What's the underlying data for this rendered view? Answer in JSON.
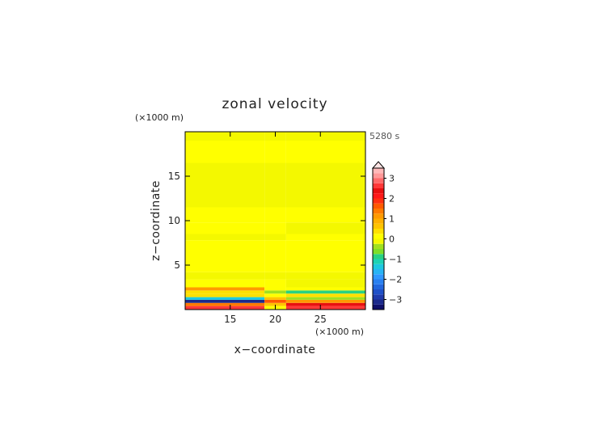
{
  "chart_data": {
    "type": "heatmap",
    "title": "zonal velocity",
    "xlabel": "x−coordinate",
    "ylabel": "z−coordinate",
    "x_unit": "(×1000 m)",
    "y_unit": "(×1000 m)",
    "time_label": "5280 s",
    "xlim": [
      10,
      30
    ],
    "ylim": [
      0,
      20
    ],
    "x_ticks": [
      15,
      20,
      25
    ],
    "y_ticks": [
      5,
      10,
      15
    ],
    "x_tick_labels": [
      "15",
      "20",
      "25"
    ],
    "y_tick_labels": [
      "5",
      "10",
      "15"
    ],
    "colorbar": {
      "levels": [
        -3.5,
        -3.25,
        -3,
        -2.75,
        -2.5,
        -2.25,
        -2,
        -1.75,
        -1.5,
        -1.25,
        -1,
        -0.75,
        -0.5,
        -0.25,
        0,
        0.25,
        0.5,
        0.75,
        1,
        1.25,
        1.5,
        1.75,
        2,
        2.25,
        2.5,
        2.75,
        3,
        3.25,
        3.5
      ],
      "colors": [
        "#10106a",
        "#1c2a8c",
        "#1f3aac",
        "#2050c8",
        "#2266dd",
        "#2a80f0",
        "#3098ff",
        "#28b4f4",
        "#1ec8e0",
        "#1ed2b4",
        "#28d282",
        "#7ede28",
        "#a0e020",
        "#f4f800",
        "#ffff00",
        "#ffe000",
        "#ffc400",
        "#ffb000",
        "#ff9a00",
        "#ff7a00",
        "#ff5a00",
        "#ff3010",
        "#ff1818",
        "#e81010",
        "#ff3838",
        "#ff6a6a",
        "#ff9898",
        "#ffb8b8"
      ],
      "tick_values": [
        -3,
        -2,
        -1,
        0,
        1,
        2,
        3
      ],
      "tick_labels": [
        "−3",
        "−2",
        "−1",
        "0",
        "1",
        "2",
        "3"
      ],
      "extend": "max"
    },
    "bands": [
      {
        "z": [
          0.0,
          0.4
        ],
        "left": 2.6,
        "mid": 0.2,
        "right": 2.6
      },
      {
        "z": [
          0.4,
          0.75
        ],
        "left": 1.4,
        "mid": 0.5,
        "right": 2.3
      },
      {
        "z": [
          0.75,
          1.1
        ],
        "left": -3.2,
        "mid": 1.5,
        "right": 1.0
      },
      {
        "z": [
          1.1,
          1.4
        ],
        "left": -1.3,
        "mid": 0.6,
        "right": -0.4
      },
      {
        "z": [
          1.4,
          1.8
        ],
        "left": 0.3,
        "mid": 0.2,
        "right": 0.3
      },
      {
        "z": [
          1.8,
          2.15
        ],
        "left": 0.3,
        "mid": -0.3,
        "right": -0.9
      },
      {
        "z": [
          2.15,
          2.5
        ],
        "left": 1.0,
        "mid": 0.1,
        "right": 0.1
      },
      {
        "z": [
          2.5,
          3.4
        ],
        "left": 0.1,
        "mid": 0.1,
        "right": -0.1
      },
      {
        "z": [
          3.4,
          4.2
        ],
        "left": -0.1,
        "mid": -0.1,
        "right": -0.1
      },
      {
        "z": [
          4.2,
          6.0
        ],
        "left": 0.1,
        "mid": 0.1,
        "right": 0.1
      },
      {
        "z": [
          6.0,
          7.8
        ],
        "left": 0.1,
        "mid": 0.1,
        "right": 0.1
      },
      {
        "z": [
          7.8,
          8.5
        ],
        "left": -0.1,
        "mid": -0.1,
        "right": 0.1
      },
      {
        "z": [
          8.5,
          9.8
        ],
        "left": 0.1,
        "mid": 0.1,
        "right": -0.1
      },
      {
        "z": [
          9.8,
          11.5
        ],
        "left": 0.1,
        "mid": 0.1,
        "right": 0.1
      },
      {
        "z": [
          11.5,
          16.5
        ],
        "left": -0.1,
        "mid": -0.1,
        "right": -0.1
      },
      {
        "z": [
          16.5,
          19.0
        ],
        "left": 0.1,
        "mid": 0.1,
        "right": 0.1
      },
      {
        "z": [
          19.0,
          20.0
        ],
        "left": -0.1,
        "mid": -0.1,
        "right": -0.1
      }
    ]
  }
}
